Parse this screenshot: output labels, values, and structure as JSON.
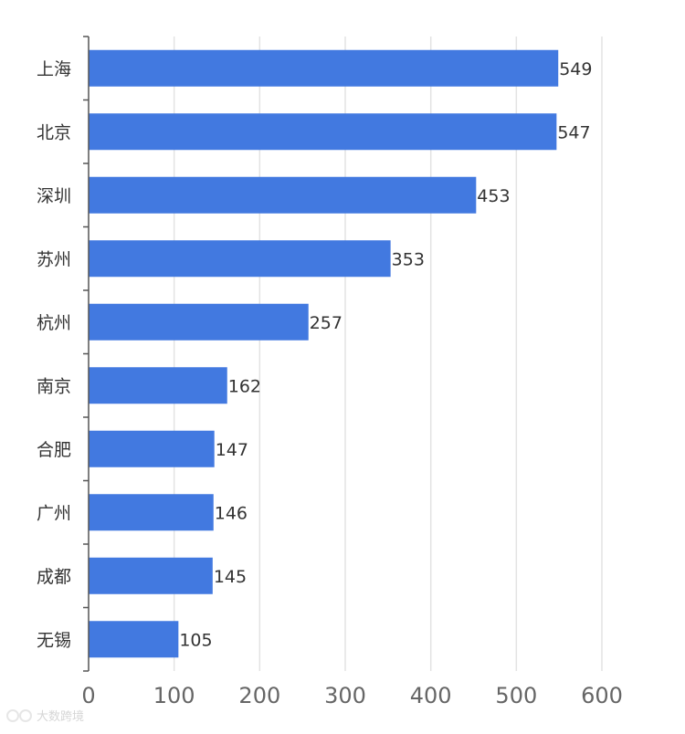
{
  "chart_data": {
    "type": "bar",
    "orientation": "horizontal",
    "categories": [
      "上海",
      "北京",
      "深圳",
      "苏州",
      "杭州",
      "南京",
      "合肥",
      "广州",
      "成都",
      "无锡"
    ],
    "values": [
      549,
      547,
      453,
      353,
      257,
      162,
      147,
      146,
      145,
      105
    ],
    "xlim": [
      0,
      600
    ],
    "xticks": [
      0,
      100,
      200,
      300,
      400,
      500,
      600
    ],
    "grid": "vertical",
    "legend": "none",
    "bar_color": "#4279e0"
  },
  "watermark": {
    "text": "大数跨境"
  }
}
